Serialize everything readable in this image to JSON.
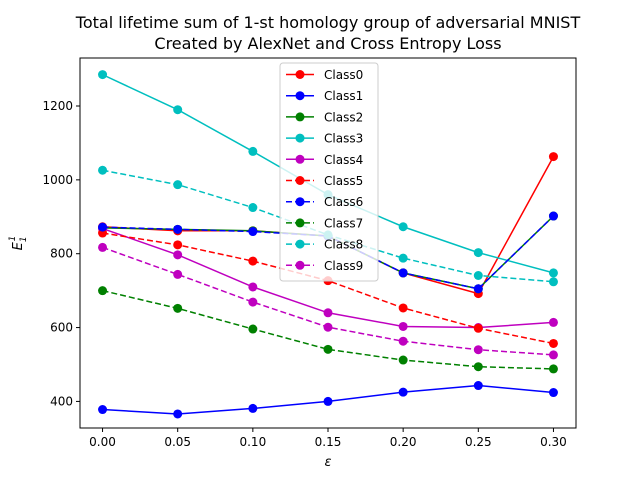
{
  "chart_data": {
    "type": "line",
    "title": "Total lifetime sum of 1-st homology group of adversarial MNIST",
    "subtitle": "Created by AlexNet and Cross Entropy Loss",
    "xlabel": "ε",
    "ylabel": "E",
    "ylabel_sub": "1",
    "ylabel_sup": "1",
    "x": [
      0.0,
      0.05,
      0.1,
      0.15,
      0.2,
      0.25,
      0.3
    ],
    "x_tick_labels": [
      "0.00",
      "0.05",
      "0.10",
      "0.15",
      "0.20",
      "0.25",
      "0.30"
    ],
    "y_ticks": [
      400,
      600,
      800,
      1000,
      1200
    ],
    "xlim": [
      -0.015,
      0.315
    ],
    "ylim": [
      328,
      1330
    ],
    "grid": false,
    "legend_position": "top-center",
    "series": [
      {
        "name": "Class0",
        "color": "#ff0000",
        "linestyle": "solid",
        "values": [
          873,
          862,
          862,
          848,
          748,
          692,
          1063
        ]
      },
      {
        "name": "Class1",
        "color": "#0000ff",
        "linestyle": "solid",
        "values": [
          378,
          366,
          381,
          400,
          425,
          443,
          424
        ]
      },
      {
        "name": "Class2",
        "color": "#008000",
        "linestyle": "solid",
        "values": [
          870,
          866,
          862,
          848,
          748,
          705,
          902
        ]
      },
      {
        "name": "Class3",
        "color": "#00bfbf",
        "linestyle": "solid",
        "values": [
          1285,
          1190,
          1077,
          960,
          873,
          803,
          748
        ]
      },
      {
        "name": "Class4",
        "color": "#bf00bf",
        "linestyle": "solid",
        "values": [
          868,
          797,
          710,
          640,
          603,
          600,
          614
        ]
      },
      {
        "name": "Class5",
        "color": "#ff0000",
        "linestyle": "dashed",
        "values": [
          856,
          824,
          780,
          727,
          653,
          598,
          557
        ]
      },
      {
        "name": "Class6",
        "color": "#0000ff",
        "linestyle": "dashed",
        "values": [
          872,
          866,
          860,
          848,
          748,
          705,
          902
        ]
      },
      {
        "name": "Class7",
        "color": "#008000",
        "linestyle": "dashed",
        "values": [
          700,
          652,
          596,
          541,
          512,
          494,
          488
        ]
      },
      {
        "name": "Class8",
        "color": "#00bfbf",
        "linestyle": "dashed",
        "values": [
          1026,
          987,
          925,
          851,
          788,
          741,
          724
        ]
      },
      {
        "name": "Class9",
        "color": "#bf00bf",
        "linestyle": "dashed",
        "values": [
          817,
          744,
          669,
          601,
          563,
          540,
          526
        ]
      }
    ]
  }
}
